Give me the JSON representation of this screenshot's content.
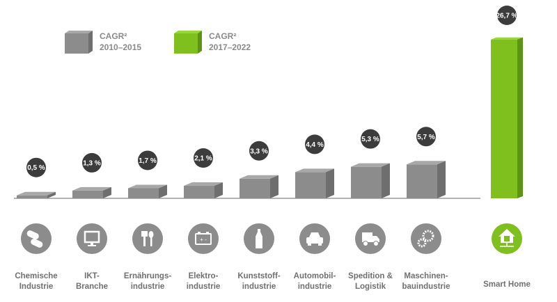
{
  "chart_data": {
    "type": "bar",
    "categories": [
      [
        "Chemische",
        "Industrie"
      ],
      [
        "IKT-",
        "Branche"
      ],
      [
        "Ernährungs-",
        "industrie"
      ],
      [
        "Elektro-",
        "industrie"
      ],
      [
        "Kunststoff-",
        "industrie"
      ],
      [
        "Automobil-",
        "industrie"
      ],
      [
        "Spedition &",
        "Logistik"
      ],
      [
        "Maschinen-",
        "bauindustrie"
      ],
      [
        "Smart Home"
      ]
    ],
    "icons": [
      "pills-icon",
      "monitor-icon",
      "fork-spoon-icon",
      "battery-icon",
      "bottle-icon",
      "car-icon",
      "truck-icon",
      "gears-icon",
      "smart-home-icon"
    ],
    "values": [
      0.5,
      1.3,
      1.7,
      2.1,
      3.3,
      4.4,
      5.3,
      5.7,
      26.7
    ],
    "data_labels": [
      "0,5 %",
      "1,3 %",
      "1,7 %",
      "2,1 %",
      "3,3 %",
      "4,4 %",
      "5,3 %",
      "5,7 %",
      "26,7 %"
    ],
    "series_index": [
      0,
      0,
      0,
      0,
      0,
      0,
      0,
      0,
      1
    ],
    "series": [
      {
        "name": "CAGR² 2010–2015",
        "label_lines": [
          "CAGR²",
          "2010–2015"
        ],
        "color": "#8c8c8c"
      },
      {
        "name": "CAGR² 2017–2022",
        "label_lines": [
          "CAGR²",
          "2017–2022"
        ],
        "color": "#7fbf1e"
      }
    ],
    "legend": "top-left",
    "grid": false,
    "unit": "%"
  }
}
